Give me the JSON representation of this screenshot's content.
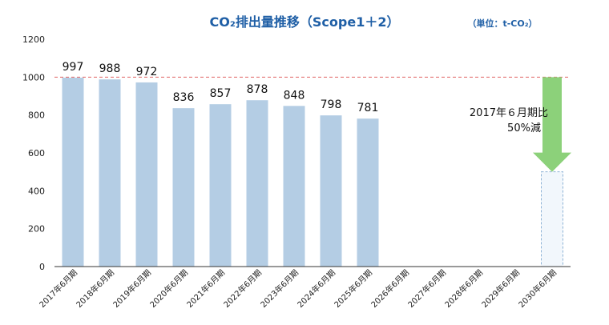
{
  "chart_data": {
    "type": "bar",
    "title": "CO₂排出量推移（Scope1＋2）",
    "unit_note": "（単位：t-CO₂）",
    "categories": [
      "2017年6月期",
      "2018年6月期",
      "2019年6月期",
      "2020年6月期",
      "2021年6月期",
      "2022年6月期",
      "2023年6月期",
      "2024年6月期",
      "2025年6月期",
      "2026年6月期",
      "2027年6月期",
      "2028年6月期",
      "2029年6月期",
      "2030年6月期"
    ],
    "values": [
      997,
      988,
      972,
      836,
      857,
      878,
      848,
      798,
      781,
      null,
      null,
      null,
      null,
      500
    ],
    "data_labels": [
      "997",
      "988",
      "972",
      "836",
      "857",
      "878",
      "848",
      "798",
      "781",
      "",
      "",
      "",
      "",
      ""
    ],
    "target_index": 13,
    "reference_line": 1000,
    "ylim": [
      0,
      1200
    ],
    "yticks": [
      0,
      200,
      400,
      600,
      800,
      1000,
      1200
    ],
    "annotation": [
      "2017年６月期比",
      "50%減"
    ],
    "colors": {
      "bar": "#b4cde4",
      "target_fill": "#f2f7fc",
      "target_border": "#8fb3d6",
      "reference_line": "#e06464",
      "arrow": "#8cd17a",
      "title": "#1f5fa6",
      "axis": "#333333"
    }
  }
}
